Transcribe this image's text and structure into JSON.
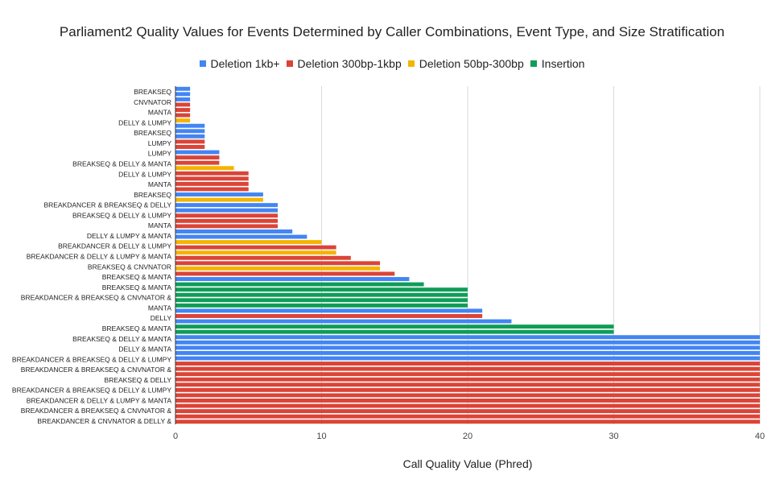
{
  "chart_data": {
    "type": "bar",
    "orientation": "horizontal",
    "title": "Parliament2 Quality Values for Events Determined by Caller Combinations, Event Type, and Size Stratification",
    "xlabel": "Call Quality Value (Phred)",
    "ylabel": "",
    "xlim": [
      0,
      40
    ],
    "xticks": [
      0,
      10,
      20,
      30,
      40
    ],
    "grid": true,
    "legend_position": "top",
    "series": [
      {
        "name": "Deletion 1kb+",
        "color": "#4285f4"
      },
      {
        "name": "Deletion 300bp-1kbp",
        "color": "#db4437"
      },
      {
        "name": "Deletion 50bp-300bp",
        "color": "#f4b400"
      },
      {
        "name": "Insertion",
        "color": "#0f9d58"
      }
    ],
    "category_labels": [
      "BREAKSEQ",
      "CNVNATOR",
      "MANTA",
      "DELLY & LUMPY",
      "BREAKSEQ",
      "LUMPY",
      "LUMPY",
      "BREAKSEQ & DELLY & MANTA",
      "DELLY & LUMPY",
      "MANTA",
      "BREAKSEQ",
      "BREAKDANCER & BREAKSEQ & DELLY",
      "BREAKSEQ & DELLY & LUMPY",
      "MANTA",
      "DELLY & LUMPY & MANTA",
      "BREAKDANCER & DELLY & LUMPY",
      "BREAKDANCER & DELLY & LUMPY & MANTA",
      "BREAKSEQ & CNVNATOR",
      "BREAKSEQ & MANTA",
      "BREAKSEQ & MANTA",
      "BREAKDANCER & BREAKSEQ & CNVNATOR &",
      "MANTA",
      "DELLY",
      "BREAKSEQ & MANTA",
      "BREAKSEQ & DELLY & MANTA",
      "DELLY & MANTA",
      "BREAKDANCER & BREAKSEQ & DELLY & LUMPY",
      "BREAKDANCER & BREAKSEQ & CNVNATOR &",
      "BREAKSEQ & DELLY",
      "BREAKDANCER & BREAKSEQ & DELLY & LUMPY",
      "BREAKDANCER & DELLY & LUMPY & MANTA",
      "BREAKDANCER & BREAKSEQ & CNVNATOR &",
      "BREAKDANCER & CNVNATOR & DELLY &"
    ],
    "bars": [
      {
        "series": 0,
        "value": 1
      },
      {
        "series": 0,
        "value": 1
      },
      {
        "series": 0,
        "value": 1
      },
      {
        "series": 1,
        "value": 1
      },
      {
        "series": 1,
        "value": 1
      },
      {
        "series": 1,
        "value": 1
      },
      {
        "series": 2,
        "value": 1
      },
      {
        "series": 0,
        "value": 2
      },
      {
        "series": 0,
        "value": 2
      },
      {
        "series": 0,
        "value": 2
      },
      {
        "series": 1,
        "value": 2
      },
      {
        "series": 1,
        "value": 2
      },
      {
        "series": 0,
        "value": 3
      },
      {
        "series": 1,
        "value": 3
      },
      {
        "series": 1,
        "value": 3
      },
      {
        "series": 2,
        "value": 4
      },
      {
        "series": 1,
        "value": 5
      },
      {
        "series": 1,
        "value": 5
      },
      {
        "series": 1,
        "value": 5
      },
      {
        "series": 1,
        "value": 5
      },
      {
        "series": 0,
        "value": 6
      },
      {
        "series": 2,
        "value": 6
      },
      {
        "series": 0,
        "value": 7
      },
      {
        "series": 0,
        "value": 7
      },
      {
        "series": 1,
        "value": 7
      },
      {
        "series": 1,
        "value": 7
      },
      {
        "series": 1,
        "value": 7
      },
      {
        "series": 0,
        "value": 8
      },
      {
        "series": 0,
        "value": 9
      },
      {
        "series": 2,
        "value": 10
      },
      {
        "series": 1,
        "value": 11
      },
      {
        "series": 2,
        "value": 11
      },
      {
        "series": 1,
        "value": 12
      },
      {
        "series": 1,
        "value": 14
      },
      {
        "series": 2,
        "value": 14
      },
      {
        "series": 1,
        "value": 15
      },
      {
        "series": 0,
        "value": 16
      },
      {
        "series": 3,
        "value": 17
      },
      {
        "series": 3,
        "value": 20
      },
      {
        "series": 3,
        "value": 20
      },
      {
        "series": 3,
        "value": 20
      },
      {
        "series": 3,
        "value": 20
      },
      {
        "series": 0,
        "value": 21
      },
      {
        "series": 1,
        "value": 21
      },
      {
        "series": 0,
        "value": 23
      },
      {
        "series": 3,
        "value": 30
      },
      {
        "series": 3,
        "value": 30
      },
      {
        "series": 0,
        "value": 40
      },
      {
        "series": 0,
        "value": 40
      },
      {
        "series": 0,
        "value": 40
      },
      {
        "series": 0,
        "value": 40
      },
      {
        "series": 0,
        "value": 40
      },
      {
        "series": 1,
        "value": 40
      },
      {
        "series": 1,
        "value": 40
      },
      {
        "series": 1,
        "value": 40
      },
      {
        "series": 1,
        "value": 40
      },
      {
        "series": 1,
        "value": 40
      },
      {
        "series": 1,
        "value": 40
      },
      {
        "series": 1,
        "value": 40
      },
      {
        "series": 1,
        "value": 40
      },
      {
        "series": 1,
        "value": 40
      },
      {
        "series": 1,
        "value": 40
      },
      {
        "series": 1,
        "value": 40
      },
      {
        "series": 1,
        "value": 40
      }
    ]
  }
}
